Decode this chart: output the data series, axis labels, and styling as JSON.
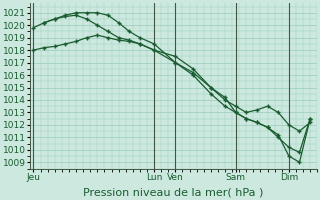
{
  "background_color": "#cce8df",
  "grid_color": "#99ccbb",
  "line_color": "#1a5c30",
  "marker_color": "#1a5c30",
  "ylabel_ticks": [
    1009,
    1010,
    1011,
    1012,
    1013,
    1014,
    1015,
    1016,
    1017,
    1018,
    1019,
    1020,
    1021
  ],
  "ylim": [
    1008.5,
    1021.8
  ],
  "xlabel": "Pression niveau de la mer( hPa )",
  "xlabel_fontsize": 8,
  "tick_label_fontsize": 6.5,
  "xtick_labels": [
    "Jeu",
    "Lun",
    "Ven",
    "Sam",
    "Dim"
  ],
  "xtick_positions": [
    0,
    34,
    40,
    57,
    72
  ],
  "total_points": 80,
  "series1_x": [
    0,
    3,
    6,
    9,
    12,
    15,
    18,
    21,
    24,
    27,
    30,
    34,
    40,
    45,
    50,
    54,
    57,
    60,
    63,
    66,
    69,
    72,
    75,
    78
  ],
  "series1_y": [
    1018.0,
    1018.2,
    1018.3,
    1018.5,
    1018.7,
    1019.0,
    1019.2,
    1019.0,
    1018.8,
    1018.7,
    1018.5,
    1018.0,
    1017.5,
    1016.5,
    1015.0,
    1014.0,
    1013.5,
    1013.0,
    1013.2,
    1013.5,
    1013.0,
    1012.0,
    1011.5,
    1012.2
  ],
  "series2_x": [
    0,
    3,
    6,
    9,
    12,
    15,
    18,
    21,
    24,
    27,
    30,
    34,
    40,
    45,
    50,
    54,
    57,
    60,
    63,
    66,
    69,
    72,
    75,
    78
  ],
  "series2_y": [
    1019.8,
    1020.2,
    1020.5,
    1020.7,
    1020.8,
    1020.5,
    1020.0,
    1019.5,
    1019.0,
    1018.8,
    1018.5,
    1018.0,
    1017.0,
    1016.2,
    1015.0,
    1014.2,
    1013.0,
    1012.5,
    1012.2,
    1011.8,
    1011.2,
    1009.5,
    1009.0,
    1012.5
  ],
  "series3_x": [
    3,
    6,
    9,
    12,
    15,
    18,
    21,
    24,
    27,
    30,
    34,
    40,
    45,
    50,
    54,
    57,
    60,
    63,
    66,
    69,
    72,
    75,
    78
  ],
  "series3_y": [
    1020.2,
    1020.5,
    1020.8,
    1021.0,
    1021.0,
    1021.0,
    1020.8,
    1020.2,
    1019.5,
    1019.0,
    1018.5,
    1017.0,
    1016.0,
    1014.5,
    1013.5,
    1013.0,
    1012.5,
    1012.2,
    1011.8,
    1011.0,
    1010.2,
    1009.8,
    1012.5
  ],
  "vline_positions": [
    0,
    34,
    40,
    57,
    72
  ],
  "vline_color": "#445544"
}
